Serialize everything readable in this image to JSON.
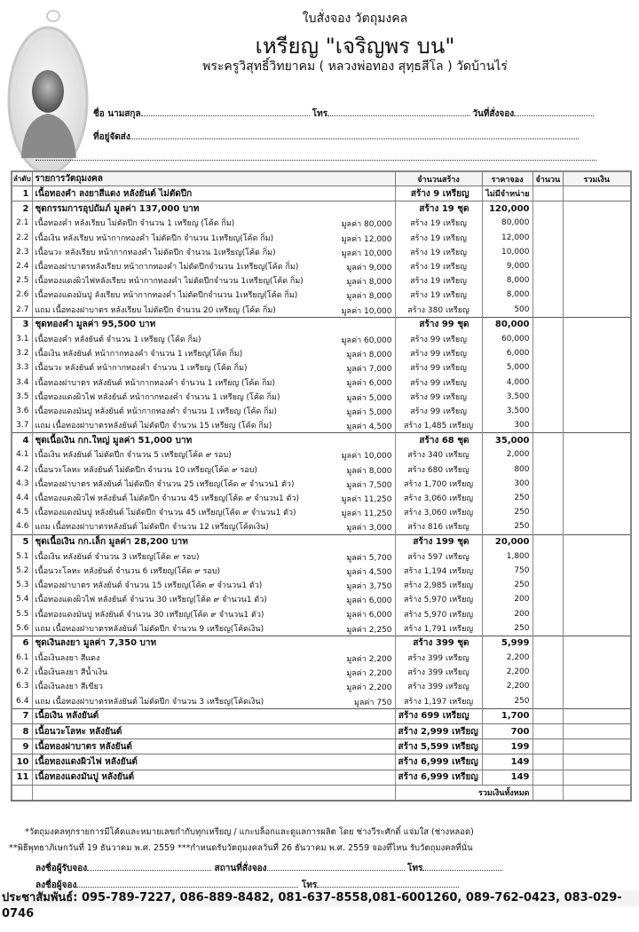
{
  "header": {
    "line1": "ใบสั่งจอง วัตถุมงคล",
    "title": "เหรียญ \"เจริญพร บน\"",
    "subtitle": "พระครูวิสุทธิ์วิทยาคม ( หลวงพ่อทอง สุทฺธสีโล ) วัดบ้านไร่",
    "logo_icon": "monk-medallion-image"
  },
  "form": {
    "name_label": "ชื่อ นามสกุล",
    "phone_label": "โทร",
    "date_label": "วันที่สั่งจอง",
    "address_label": "ที่อยู่จัดส่ง"
  },
  "table": {
    "headers": {
      "no": "ลำดับ",
      "desc": "รายการวัตถุมงคล",
      "build": "จำนวนสร้าง",
      "price": "ราคาจอง",
      "qty": "จำนวน",
      "total": "รวมเงิน"
    },
    "rows": [
      {
        "type": "single",
        "no": "1",
        "desc": "เนื้อทองคำ ลงยาสีแดง หลังยันต์ ไม่ตัดปีก",
        "value": "",
        "build": "สร้าง 9 เหรียญ",
        "price": "ไม่มีจำหน่าย"
      },
      {
        "type": "sec",
        "no": "2",
        "desc": "ชุดกรรมการอุปถัมภ์ มูลค่า 137,000 บาท",
        "value": "",
        "build": "สร้าง 19 ชุด",
        "price": "120,000"
      },
      {
        "type": "item",
        "no": "2.1",
        "desc": "เนื้อทองคำ หลังเรียบ ไม่ตัดปีก จำนวน 1 เหรียญ (โค้ด กิ่ม)",
        "value": "มูลค่า 80,000",
        "build": "สร้าง 19 เหรียญ",
        "price": "80,000"
      },
      {
        "type": "item",
        "no": "2.2",
        "desc": "เนื้อเงิน หลังเรียบ  หน้ากากทองคำ ไม่ตัดปีก จำนวน 1เหรียญ(โค้ด กิ่ม)",
        "value": "มูลค่า 12,000",
        "build": "สร้าง 19 เหรียญ",
        "price": "12,000"
      },
      {
        "type": "item",
        "no": "2.3",
        "desc": "เนื้อนวะ หลังเรียบ หน้ากากทองคำ ไม่ตัดปีก  จำนวน 1เหรียญ(โค้ด กิ่ม)",
        "value": "มูลค่า 10,000",
        "build": "สร้าง 19 เหรียญ",
        "price": "10,000"
      },
      {
        "type": "item",
        "no": "2.4",
        "desc": "เนื้อทองฝาบาตรหลังเรียบ  หน้ากากทองคำ ไม่ตัดปีกจำนวน 1เหรียญ(โค้ด กิ่ม)",
        "value": "มูลค่า 9,000",
        "build": "สร้าง 19 เหรียญ",
        "price": "9,000"
      },
      {
        "type": "item",
        "no": "2.5",
        "desc": "เนื้อทองแดงผิวไฟหลังเรียบ หน้ากากทองคำ ไม่ตัดปีกจำนวน 1เหรียญ(โค้ด กิ่ม)",
        "value": "มูลค่า 8,000",
        "build": "สร้าง 19 เหรียญ",
        "price": "8,000"
      },
      {
        "type": "item",
        "no": "2.6",
        "desc": "เนื้อทองแดงมันปู ลังเรียบ  หน้ากากทองคำ ไม่ตัดปีกจำนวน 1เหรียญ(โค้ด กิ่ม)",
        "value": "มูลค่า 8,000",
        "build": "สร้าง 19 เหรียญ",
        "price": "8,000"
      },
      {
        "type": "item",
        "no": "2.7",
        "desc": "แถม เนื้อทองฝาบาตร หลังเรียบ ไม่ตัดปีก จำนวน 20 เหรียญ (โค้ด กิ่ม)",
        "value": "มูลค่า 10,000",
        "build": "สร้าง 380 เหรียญ",
        "price": "500"
      },
      {
        "type": "sec",
        "no": "3",
        "desc": "ชุดทองคำ มูลค่า 95,500 บาท",
        "value": "",
        "build": "สร้าง 99 ชุด",
        "price": "80,000"
      },
      {
        "type": "item",
        "no": "3.1",
        "desc": "เนื้อทองคำ หลังยันต์  จำนวน 1 เหรียญ (โค้ด กิ่ม)",
        "value": "มูลค่า 60,000",
        "build": "สร้าง 99 เหรียญ",
        "price": "60,000"
      },
      {
        "type": "item",
        "no": "3.2",
        "desc": "เนื้อเงิน หลังยันต์  หน้ากากทองคำ จำนวน 1 เหรียญ(โค้ด กิ่ม)",
        "value": "มูลค่า 8,000",
        "build": "สร้าง 99 เหรียญ",
        "price": "6,000"
      },
      {
        "type": "item",
        "no": "3.3",
        "desc": "เนื้อนวะ หลังยันต์  หน้ากากทองคำ จำนวน 1 เหรียญ (โค้ด กิ่ม)",
        "value": "มูลค่า 7,000",
        "build": "สร้าง 99 เหรียญ",
        "price": "5,000"
      },
      {
        "type": "item",
        "no": "3.4",
        "desc": "เนื้อทองฝาบาตร หลังยันต์  หน้ากากทองคำ จำนวน 1 เหรียญ (โค้ด กิ่ม)",
        "value": "มูลค่า 6,000",
        "build": "สร้าง 99 เหรียญ",
        "price": "4,000"
      },
      {
        "type": "item",
        "no": "3.5",
        "desc": "เนื้อทองแดงผิวไฟ หลังยันต์  หน้ากากทองคำ จำนวน 1 เหรียญ (โค้ด กิ่ม)",
        "value": "มูลค่า 5,000",
        "build": "สร้าง 99 เหรียญ",
        "price": "3,500"
      },
      {
        "type": "item",
        "no": "3.6",
        "desc": "เนื้อทองแดงมันปู หลังยันต์  หน้ากากทองคำ จำนวน 1 เหรียญ (โค้ด กิ่ม)",
        "value": "มูลค่า 5,000",
        "build": "สร้าง 99 เหรียญ",
        "price": "3,500"
      },
      {
        "type": "item",
        "no": "3.7",
        "desc": "แถม เนื้อทองฝาบาตรหลังยันต์ ไม่ตัดปีก จำนวน 15 เหรียญ (โค้ด กิ่ม)",
        "value": "มูลค่า 4,500",
        "build": "สร้าง 1,485 เหรียญ",
        "price": "300"
      },
      {
        "type": "sec",
        "no": "4",
        "desc": "ชุดเนื้อเงิน กก.ใหญ่ มูลค่า 51,000 บาท",
        "value": "",
        "build": "สร้าง 68 ชุด",
        "price": "35,000"
      },
      {
        "type": "item",
        "no": "4.1",
        "desc": "เนื้อเงิน หลังยันต์ ไม่ตัดปีก  จำนวน 5 เหรียญ(โค้ด ๙ รอบ)",
        "value": "มูลค่า 10,000",
        "build": "สร้าง 340 เหรียญ",
        "price": "2,000"
      },
      {
        "type": "item",
        "no": "4.2",
        "desc": "เนื้อนวะโลหะ หลังยันต์ ไม่ตัดปีก จำนวน 10 เหรียญ(โค้ด ๙ รอบ)",
        "value": "มูลค่า 8,000",
        "build": "สร้าง 680 เหรียญ",
        "price": "800"
      },
      {
        "type": "item",
        "no": "4.3",
        "desc": "เนื้อทองฝาบาตร หลังยันต์ ไม่ตัดปีก จำนวน 25 เหรียญ(โค้ด ๙ จำนวน1 ตัว)",
        "value": "มูลค่า 7,500",
        "build": "สร้าง 1,700 เหรียญ",
        "price": "300"
      },
      {
        "type": "item",
        "no": "4.4",
        "desc": "เนื้อทองแดงผิวไฟ หลังยันต์ ไม่ตัดปีก จำนวน 45 เหรียญ(โค้ด ๙ จำนวน1 ตัว)",
        "value": "มูลค่า 11,250",
        "build": "สร้าง 3,060 เหรียญ",
        "price": "250"
      },
      {
        "type": "item",
        "no": "4.5",
        "desc": "เนื้อทองแดงมันปู หลังยันต์ ไม่ตัดปีก  จำนวน 45 เหรียญ(โค้ด ๙ จำนวน1 ตัว)",
        "value": "มูลค่า 11,250",
        "build": "สร้าง 3,060 เหรียญ",
        "price": "250"
      },
      {
        "type": "item",
        "no": "4.6",
        "desc": "แถม เนื้อทองฝาบาตรหลังยันต์ ไม่ตัดปีก จำนวน 12 เหรียญ(โค้ดเงิน)",
        "value": "มูลค่า 3,000",
        "build": "สร้าง 816 เหรียญ",
        "price": "250"
      },
      {
        "type": "sec",
        "no": "5",
        "desc": "ชุดเนื้อเงิน กก.เล็ก มูลค่า 28,200 บาท",
        "value": "",
        "build": "สร้าง 199 ชุด",
        "price": "20,000"
      },
      {
        "type": "item",
        "no": "5.1",
        "desc": "เนื้อเงิน หลังยันต์ จำนวน 3 เหรียญ(โค้ด ๙ รอบ)",
        "value": "มูลค่า 5,700",
        "build": "สร้าง 597 เหรียญ",
        "price": "1,800"
      },
      {
        "type": "item",
        "no": "5.2",
        "desc": "เนื้อนวะโลหะ หลังยันต์ จำนวน 6 เหรียญ(โค้ด ๙ รอบ)",
        "value": "มูลค่า 4,500",
        "build": "สร้าง 1,194 เหรียญ",
        "price": "750"
      },
      {
        "type": "item",
        "no": "5.3",
        "desc": "เนื้อทองฝาบาตร หลังยันต์ จำนวน 15 เหรียญ(โค้ด ๙ จำนวน1 ตัว)",
        "value": "มูลค่า 3,750",
        "build": "สร้าง 2,985 เหรียญ",
        "price": "250"
      },
      {
        "type": "item",
        "no": "5.4",
        "desc": "เนื้อทองแดงผิวไฟ หลังยันต์ จำนวน 30 เหรียญ(โค้ด ๙ จำนวน1 ตัว)",
        "value": "มูลค่า 6,000",
        "build": "สร้าง 5,970 เหรียญ",
        "price": "200"
      },
      {
        "type": "item",
        "no": "5.5",
        "desc": "เนื้อทองแดงมันปู หลังยันต์ จำนวน 30 เหรียญ(โค้ด ๙ จำนวน1 ตัว)",
        "value": "มูลค่า 6,000",
        "build": "สร้าง 5,970 เหรียญ",
        "price": "200"
      },
      {
        "type": "item",
        "no": "5.6",
        "desc": "แถม เนื้อทองฝาบาตรหลังยันต์ ไม่ตัดปีก จำนวน 9 เหรียญ(โค้ดเงิน)",
        "value": "มูลค่า 2,250",
        "build": "สร้าง 1,791 เหรียญ",
        "price": "250"
      },
      {
        "type": "sec",
        "no": "6",
        "desc": "ชุดเงินลงยา มูลค่า 7,350 บาท",
        "value": "",
        "build": "สร้าง 399 ชุด",
        "price": "5,999"
      },
      {
        "type": "item",
        "no": "6.1",
        "desc": "เนื้อเงินลงยา  สีแดง",
        "value": "มูลค่า 2,200",
        "build": "สร้าง 399 เหรียญ",
        "price": "2,200"
      },
      {
        "type": "item",
        "no": "6.2",
        "desc": "เนื้อเงินลงยา  สีน้ำเงิน",
        "value": "มูลค่า 2,200",
        "build": "สร้าง 399 เหรียญ",
        "price": "2,200"
      },
      {
        "type": "item",
        "no": "6.3",
        "desc": "เนื้อเงินลงยา  สีเขียว",
        "value": "มูลค่า 2,200",
        "build": "สร้าง 399 เหรียญ",
        "price": "2,200"
      },
      {
        "type": "item",
        "no": "6.4",
        "desc": "แถม เนื้อทองฝาบาตรหลังยันต์ ไม่ตัดปีก จำนวน 3 เหรียญ(โค้ดเงิน)",
        "value": "มูลค่า 750",
        "build": "สร้าง 1,197 เหรียญ",
        "price": "250"
      },
      {
        "type": "single",
        "no": "7",
        "desc": "เนื้อเงิน หลังยันต์",
        "value": "",
        "build": "สร้าง 699 เหรียญ",
        "price": "1,700"
      },
      {
        "type": "single",
        "no": "8",
        "desc": "เนื้อนวะโลหะ หลังยันต์",
        "value": "",
        "build": "สร้าง 2,999 เหรียญ",
        "price": "700"
      },
      {
        "type": "single",
        "no": "9",
        "desc": "เนื้อทองฝาบาตร หลังยันต์",
        "value": "",
        "build": "สร้าง 5,599 เหรียญ",
        "price": "199"
      },
      {
        "type": "single",
        "no": "10",
        "desc": "เนื้อทองแดงผิวไฟ หลังยันต์",
        "value": "",
        "build": "สร้าง 6,999 เหรียญ",
        "price": "149"
      },
      {
        "type": "single",
        "no": "11",
        "desc": "เนื้อทองแดงมันปู หลังยันต์",
        "value": "",
        "build": "สร้าง 6,999 เหรียญ",
        "price": "149"
      }
    ],
    "grand_total_label": "รวมเงินทั้งหมด"
  },
  "footer": {
    "note1": "*วัตถุมงคลทุกรายการมีโค้ดและหมายเลขกำกับทุกเหรียญ / แกะบล็อกและดูแลการผลิต โดย ช่างวีระศักดิ์  แจ่มใส (ช่างหลอด)",
    "note2": "**พิธีพุทธาภิเษกวันที่ 19 ธันวาคม พ.ศ. 2559 ***กำหนดรับวัตถุมงคลวันที่ 26 ธันวาคม พ.ศ. 2559 จองที่ไหน รับวัตถุมงคลที่นั่น",
    "receiver_label": "ลงชื่อผู้รับจอง",
    "place_label": "สถานที่สั่งจอง",
    "phone_label": "โทร",
    "orderer_label": "ลงชื่อผู้จอง",
    "contact": "ประชาสัมพันธ์: 095-789-7227, 086-889-8482, 081-637-8558,081-6001260, 089-762-0423, 083-029-0746"
  }
}
